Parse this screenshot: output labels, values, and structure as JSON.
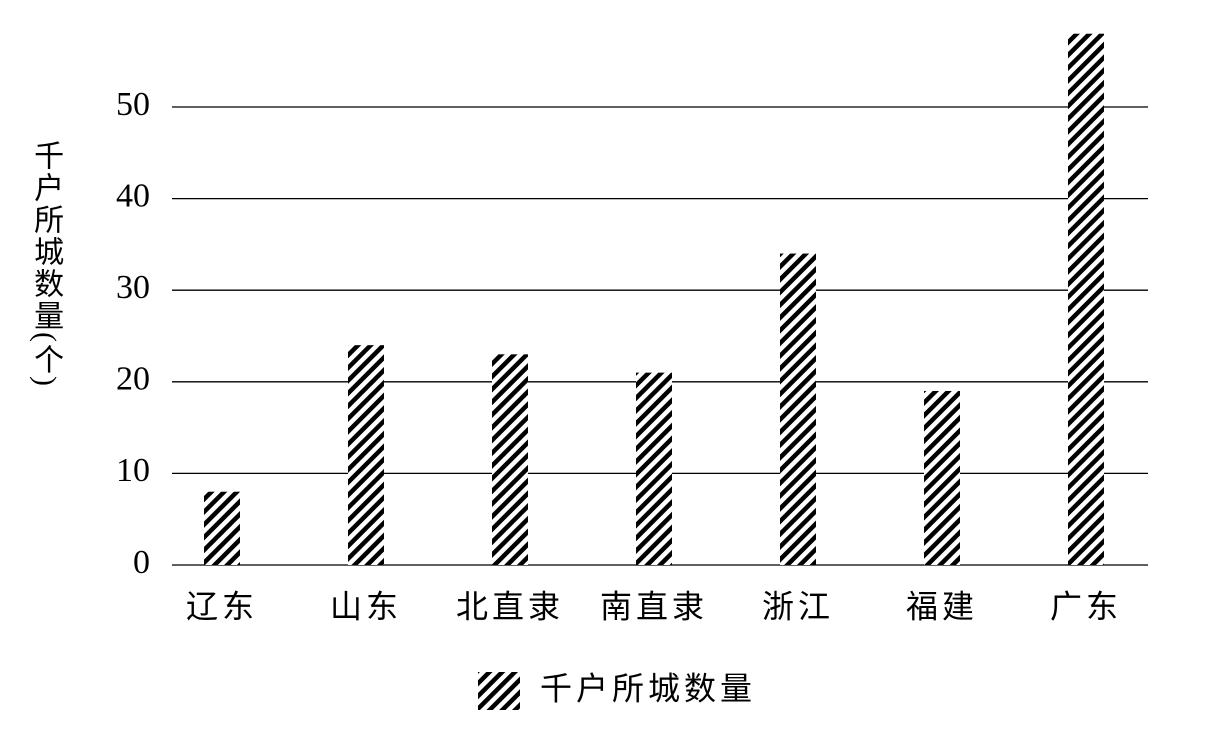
{
  "chart_data": {
    "type": "bar",
    "y_label": "千户所城数量(个)",
    "categories": [
      "辽东",
      "山东",
      "北直隶",
      "南直隶",
      "浙江",
      "福建",
      "广东"
    ],
    "series": [
      {
        "name": "千户所城数量",
        "color": "#000000",
        "values": [
          8,
          24,
          23,
          21,
          34,
          19,
          58
        ]
      }
    ],
    "ylim": [
      0,
      60
    ],
    "yticks": [
      0,
      10,
      20,
      30,
      40,
      50
    ],
    "grid": true,
    "legend": "bottom"
  }
}
